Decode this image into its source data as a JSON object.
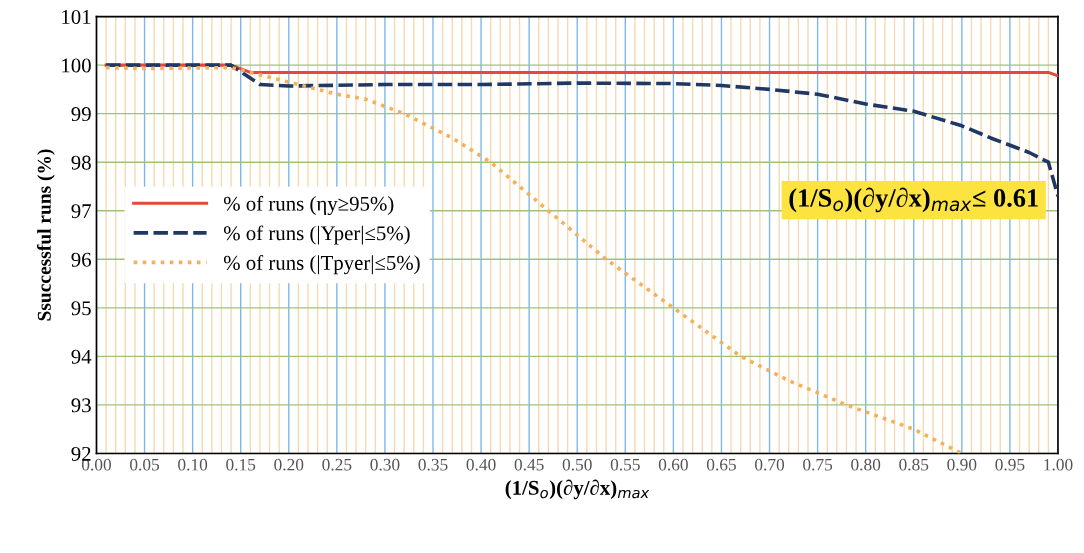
{
  "chart_data": {
    "type": "line",
    "xlabel": "(1/S$_{o}$)(∂y/∂x)$_{max}$",
    "ylabel": "Ssuccessful runs (%)",
    "annotations": [
      "(1/S$_{o}$)(∂y/∂x)$_{max}$≤ 0.61"
    ],
    "xlim": [
      0,
      1
    ],
    "ylim": [
      92,
      101
    ],
    "xticks": [
      {
        "value": 0,
        "label": "0.00"
      },
      {
        "value": 0.01,
        "label": null
      },
      {
        "value": 0.02,
        "label": null
      },
      {
        "value": 0.03,
        "label": null
      },
      {
        "value": 0.04,
        "label": null
      },
      {
        "value": 0.05,
        "label": "0.05"
      },
      {
        "value": 0.06,
        "label": null
      },
      {
        "value": 0.07,
        "label": null
      },
      {
        "value": 0.08,
        "label": null
      },
      {
        "value": 0.09,
        "label": null
      },
      {
        "value": 0.1,
        "label": "0.10"
      },
      {
        "value": 0.11,
        "label": null
      },
      {
        "value": 0.12,
        "label": null
      },
      {
        "value": 0.13,
        "label": null
      },
      {
        "value": 0.14,
        "label": null
      },
      {
        "value": 0.15,
        "label": "0.15"
      },
      {
        "value": 0.16,
        "label": null
      },
      {
        "value": 0.17,
        "label": null
      },
      {
        "value": 0.18,
        "label": null
      },
      {
        "value": 0.19,
        "label": null
      },
      {
        "value": 0.2,
        "label": "0.20"
      },
      {
        "value": 0.21,
        "label": null
      },
      {
        "value": 0.22,
        "label": null
      },
      {
        "value": 0.23,
        "label": null
      },
      {
        "value": 0.24,
        "label": null
      },
      {
        "value": 0.25,
        "label": "0.25"
      },
      {
        "value": 0.26,
        "label": null
      },
      {
        "value": 0.27,
        "label": null
      },
      {
        "value": 0.28,
        "label": null
      },
      {
        "value": 0.29,
        "label": null
      },
      {
        "value": 0.3,
        "label": "0.30"
      },
      {
        "value": 0.31,
        "label": null
      },
      {
        "value": 0.32,
        "label": null
      },
      {
        "value": 0.33,
        "label": null
      },
      {
        "value": 0.34,
        "label": null
      },
      {
        "value": 0.35,
        "label": "0.35"
      },
      {
        "value": 0.36,
        "label": null
      },
      {
        "value": 0.37,
        "label": null
      },
      {
        "value": 0.38,
        "label": null
      },
      {
        "value": 0.39,
        "label": null
      },
      {
        "value": 0.4,
        "label": "0.40"
      },
      {
        "value": 0.41,
        "label": null
      },
      {
        "value": 0.42,
        "label": null
      },
      {
        "value": 0.43,
        "label": null
      },
      {
        "value": 0.44,
        "label": null
      },
      {
        "value": 0.45,
        "label": "0.45"
      },
      {
        "value": 0.46,
        "label": null
      },
      {
        "value": 0.47,
        "label": null
      },
      {
        "value": 0.48,
        "label": null
      },
      {
        "value": 0.49,
        "label": null
      },
      {
        "value": 0.5,
        "label": "0.50"
      },
      {
        "value": 0.51,
        "label": null
      },
      {
        "value": 0.52,
        "label": null
      },
      {
        "value": 0.53,
        "label": null
      },
      {
        "value": 0.54,
        "label": null
      },
      {
        "value": 0.55,
        "label": "0.55"
      },
      {
        "value": 0.56,
        "label": null
      },
      {
        "value": 0.57,
        "label": null
      },
      {
        "value": 0.58,
        "label": null
      },
      {
        "value": 0.59,
        "label": null
      },
      {
        "value": 0.6,
        "label": "0.60"
      },
      {
        "value": 0.61,
        "label": null
      },
      {
        "value": 0.62,
        "label": null
      },
      {
        "value": 0.63,
        "label": null
      },
      {
        "value": 0.64,
        "label": null
      },
      {
        "value": 0.65,
        "label": "0.65"
      },
      {
        "value": 0.66,
        "label": null
      },
      {
        "value": 0.67,
        "label": null
      },
      {
        "value": 0.68,
        "label": null
      },
      {
        "value": 0.69,
        "label": null
      },
      {
        "value": 0.7,
        "label": "0.70"
      },
      {
        "value": 0.71,
        "label": null
      },
      {
        "value": 0.72,
        "label": null
      },
      {
        "value": 0.73,
        "label": null
      },
      {
        "value": 0.74,
        "label": null
      },
      {
        "value": 0.75,
        "label": "0.75"
      },
      {
        "value": 0.76,
        "label": null
      },
      {
        "value": 0.77,
        "label": null
      },
      {
        "value": 0.78,
        "label": null
      },
      {
        "value": 0.79,
        "label": null
      },
      {
        "value": 0.8,
        "label": "0.80"
      },
      {
        "value": 0.81,
        "label": null
      },
      {
        "value": 0.82,
        "label": null
      },
      {
        "value": 0.83,
        "label": null
      },
      {
        "value": 0.84,
        "label": null
      },
      {
        "value": 0.85,
        "label": "0.85"
      },
      {
        "value": 0.86,
        "label": null
      },
      {
        "value": 0.87,
        "label": null
      },
      {
        "value": 0.88,
        "label": null
      },
      {
        "value": 0.89,
        "label": null
      },
      {
        "value": 0.9,
        "label": "0.90"
      },
      {
        "value": 0.91,
        "label": null
      },
      {
        "value": 0.92,
        "label": null
      },
      {
        "value": 0.93,
        "label": null
      },
      {
        "value": 0.94,
        "label": null
      },
      {
        "value": 0.95,
        "label": "0.95"
      },
      {
        "value": 0.96,
        "label": null
      },
      {
        "value": 0.97,
        "label": null
      },
      {
        "value": 0.98,
        "label": null
      },
      {
        "value": 0.99,
        "label": null
      },
      {
        "value": 1,
        "label": "1.00"
      }
    ],
    "yticks": [
      92,
      93,
      94,
      95,
      96,
      97,
      98,
      99,
      100,
      101
    ],
    "grid": true,
    "legend": "left",
    "marker": "none",
    "series": [
      {
        "name": "% of runs (ηy≥95%)",
        "color": "#e8473c",
        "line_style": "solid",
        "x": [
          0.01,
          0.14,
          0.16,
          0.99,
          1.0
        ],
        "values": [
          100,
          100,
          99.85,
          99.85,
          99.78
        ]
      },
      {
        "name": "% of runs (|Yper|≤5%)",
        "color": "#1f3864",
        "line_style": "dashed",
        "x": [
          0.01,
          0.14,
          0.17,
          0.2,
          0.3,
          0.4,
          0.5,
          0.6,
          0.65,
          0.7,
          0.75,
          0.8,
          0.85,
          0.9,
          0.93,
          0.97,
          0.99,
          1.0
        ],
        "values": [
          100,
          100,
          99.6,
          99.57,
          99.6,
          99.6,
          99.63,
          99.62,
          99.58,
          99.5,
          99.4,
          99.2,
          99.05,
          98.75,
          98.5,
          98.2,
          98.0,
          97.3
        ]
      },
      {
        "name": "% of runs (|Tpyer|≤5%)",
        "color": "#f4b05a",
        "line_style": "dotted",
        "x": [
          0.01,
          0.05,
          0.14,
          0.2,
          0.25,
          0.28,
          0.32,
          0.37,
          0.41,
          0.47,
          0.53,
          0.6,
          0.67,
          0.72,
          0.78,
          0.85,
          0.9
        ],
        "values": [
          99.95,
          99.93,
          99.95,
          99.65,
          99.4,
          99.3,
          99.0,
          98.5,
          98.0,
          97.0,
          96.0,
          95.0,
          94.0,
          93.5,
          93.0,
          92.5,
          92.0
        ]
      }
    ]
  }
}
